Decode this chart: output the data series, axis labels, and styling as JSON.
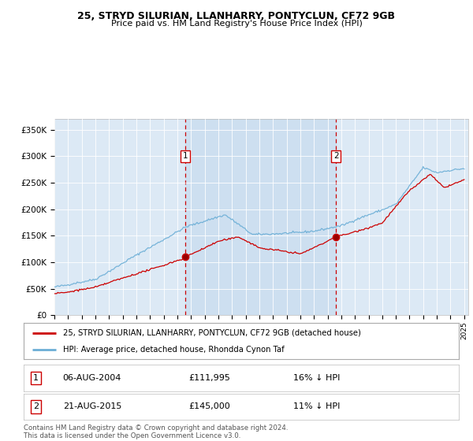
{
  "title1": "25, STRYD SILURIAN, LLANHARRY, PONTYCLUN, CF72 9GB",
  "title2": "Price paid vs. HM Land Registry's House Price Index (HPI)",
  "bg_color": "#dce9f5",
  "red_color": "#cc0000",
  "blue_color": "#6baed6",
  "shade_color": "#c6dcf0",
  "marker1_date": 2004.58,
  "marker2_date": 2015.62,
  "legend_entry1": "25, STRYD SILURIAN, LLANHARRY, PONTYCLUN, CF72 9GB (detached house)",
  "legend_entry2": "HPI: Average price, detached house, Rhondda Cynon Taf",
  "table_row1": [
    "1",
    "06-AUG-2004",
    "£111,995",
    "16% ↓ HPI"
  ],
  "table_row2": [
    "2",
    "21-AUG-2015",
    "£145,000",
    "11% ↓ HPI"
  ],
  "footer": "Contains HM Land Registry data © Crown copyright and database right 2024.\nThis data is licensed under the Open Government Licence v3.0.",
  "ylim": [
    0,
    370000
  ],
  "yticks": [
    0,
    50000,
    100000,
    150000,
    200000,
    250000,
    300000,
    350000
  ],
  "ytick_labels": [
    "£0",
    "£50K",
    "£100K",
    "£150K",
    "£200K",
    "£250K",
    "£300K",
    "£350K"
  ]
}
